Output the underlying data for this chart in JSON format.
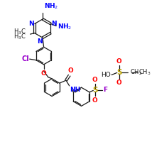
{
  "bg_color": "#ffffff",
  "bond_color": "#1a1a1a",
  "N_color": "#0000ff",
  "O_color": "#ff0000",
  "Cl_color": "#9900cc",
  "S_color": "#b8a000",
  "F_color": "#9900cc",
  "title": "3-[[3-[[2-Chloro-4-(4,6-diamino-2,2-dimethyl-1,3,5-triazin-1-yl)phenoxy]methyl]benzoyl]amino]benzenesulfonyl fluoride"
}
